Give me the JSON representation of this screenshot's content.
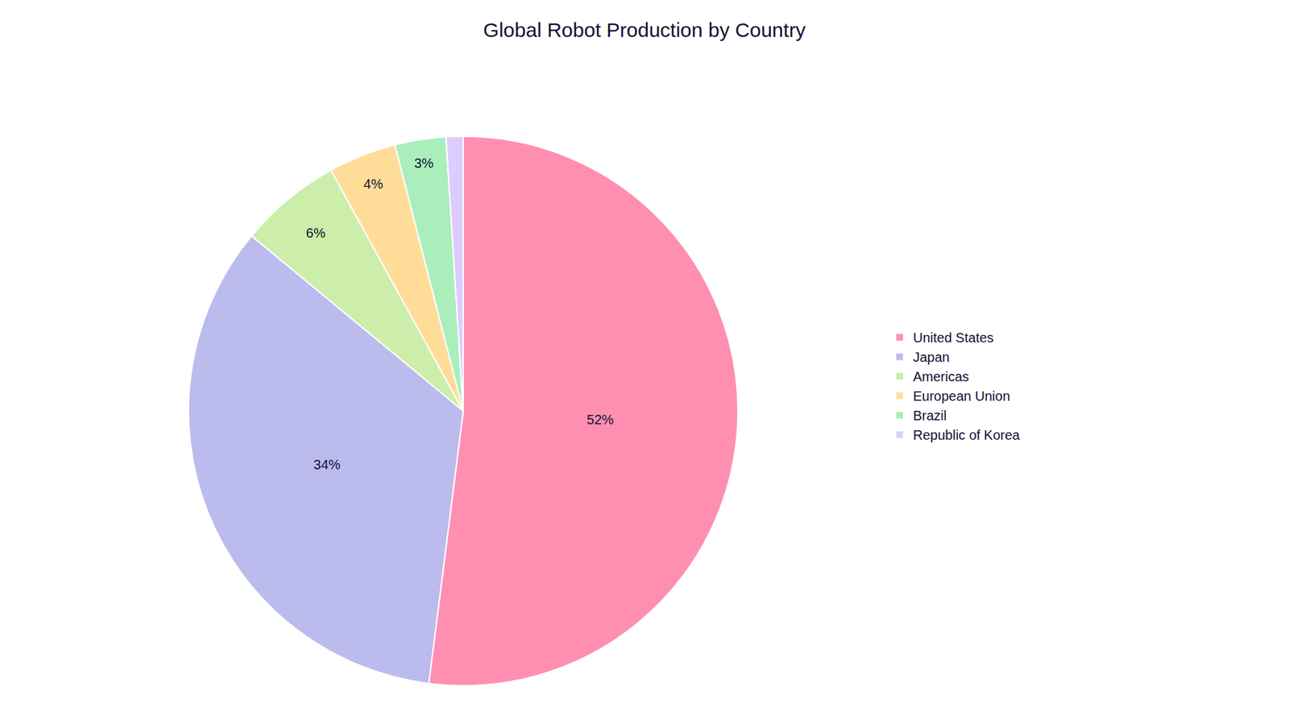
{
  "chart_data": {
    "type": "pie",
    "title": "Global Robot Production by Country",
    "categories": [
      "United States",
      "Japan",
      "Americas",
      "European Union",
      "Brazil",
      "Republic of Korea"
    ],
    "values": [
      52,
      34,
      6,
      4,
      3,
      1
    ],
    "value_labels": [
      "52%",
      "34%",
      "6%",
      "4%",
      "3%",
      null
    ],
    "colors": [
      "#FF8FB1",
      "#BBBBEE",
      "#CCEEAA",
      "#FFDD99",
      "#AAEEBB",
      "#DDCCFF"
    ],
    "data_labels": true,
    "legend": "right"
  }
}
